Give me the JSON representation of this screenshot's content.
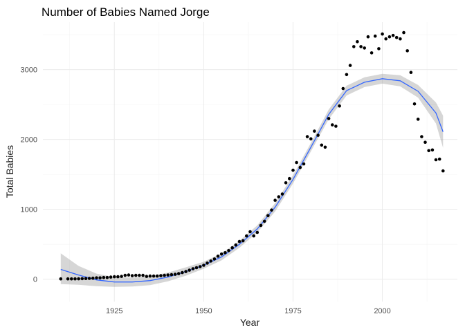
{
  "chart_data": {
    "type": "scatter",
    "title": "Number of Babies Named Jorge",
    "xlabel": "Year",
    "ylabel": "Total Babies",
    "xlim": [
      1905,
      2021
    ],
    "ylim": [
      -320,
      3680
    ],
    "x_ticks": [
      1925,
      1950,
      1975,
      2000
    ],
    "y_ticks": [
      0,
      1000,
      2000,
      3000
    ],
    "x_tick_labels": [
      "1925",
      "1950",
      "1975",
      "2000"
    ],
    "y_tick_labels": [
      "0",
      "1000",
      "2000",
      "3000"
    ],
    "grid": true,
    "legend": "none",
    "colors": {
      "points": "#000000",
      "smooth": "#3366ff",
      "band": "#999999"
    },
    "points": {
      "x": [
        1910,
        1912,
        1913,
        1914,
        1915,
        1916,
        1917,
        1918,
        1919,
        1920,
        1921,
        1922,
        1923,
        1924,
        1925,
        1926,
        1927,
        1928,
        1929,
        1930,
        1931,
        1932,
        1933,
        1934,
        1935,
        1936,
        1937,
        1938,
        1939,
        1940,
        1941,
        1942,
        1943,
        1944,
        1945,
        1946,
        1947,
        1948,
        1949,
        1950,
        1951,
        1952,
        1953,
        1954,
        1955,
        1956,
        1957,
        1958,
        1959,
        1960,
        1961,
        1962,
        1963,
        1964,
        1965,
        1966,
        1967,
        1968,
        1969,
        1970,
        1971,
        1972,
        1973,
        1974,
        1975,
        1976,
        1977,
        1978,
        1979,
        1980,
        1981,
        1982,
        1983,
        1984,
        1985,
        1986,
        1987,
        1988,
        1989,
        1990,
        1991,
        1992,
        1993,
        1994,
        1995,
        1996,
        1997,
        1998,
        1999,
        2000,
        2001,
        2002,
        2003,
        2004,
        2005,
        2006,
        2007,
        2008,
        2009,
        2010,
        2011,
        2012,
        2013,
        2014,
        2015,
        2016,
        2017
      ],
      "y": [
        5,
        5,
        5,
        5,
        6,
        8,
        10,
        12,
        15,
        20,
        20,
        25,
        25,
        30,
        35,
        35,
        40,
        55,
        60,
        50,
        55,
        55,
        55,
        40,
        45,
        45,
        45,
        50,
        55,
        60,
        65,
        70,
        80,
        95,
        110,
        130,
        150,
        165,
        180,
        200,
        230,
        260,
        290,
        330,
        360,
        380,
        410,
        450,
        490,
        540,
        550,
        620,
        680,
        620,
        670,
        770,
        830,
        910,
        990,
        1130,
        1180,
        1220,
        1380,
        1440,
        1560,
        1670,
        1600,
        1650,
        2040,
        2010,
        2120,
        2060,
        1920,
        1890,
        2300,
        2210,
        2190,
        2480,
        2730,
        2930,
        3060,
        3330,
        3400,
        3330,
        3310,
        3470,
        3240,
        3480,
        3300,
        3510,
        3440,
        3470,
        3490,
        3460,
        3440,
        3530,
        3270,
        2960,
        2510,
        2290,
        2040,
        1960,
        1840,
        1850,
        1710,
        1720,
        1550
      ]
    },
    "smooth": {
      "x": [
        1910,
        1915,
        1920,
        1925,
        1930,
        1935,
        1940,
        1945,
        1950,
        1955,
        1960,
        1965,
        1970,
        1975,
        1980,
        1985,
        1990,
        1995,
        2000,
        2005,
        2010,
        2015,
        2017
      ],
      "y": [
        140,
        60,
        -10,
        -40,
        -40,
        -20,
        30,
        110,
        200,
        320,
        500,
        720,
        1030,
        1430,
        1890,
        2360,
        2700,
        2820,
        2870,
        2840,
        2690,
        2380,
        2110
      ],
      "ymin": [
        -70,
        -80,
        -100,
        -110,
        -105,
        -85,
        -30,
        50,
        150,
        270,
        450,
        670,
        970,
        1370,
        1830,
        2290,
        2630,
        2750,
        2800,
        2760,
        2600,
        2230,
        1880
      ],
      "ymax": [
        370,
        190,
        80,
        30,
        25,
        45,
        95,
        170,
        250,
        370,
        550,
        770,
        1090,
        1490,
        1950,
        2430,
        2770,
        2890,
        2940,
        2920,
        2780,
        2530,
        2340
      ]
    }
  }
}
